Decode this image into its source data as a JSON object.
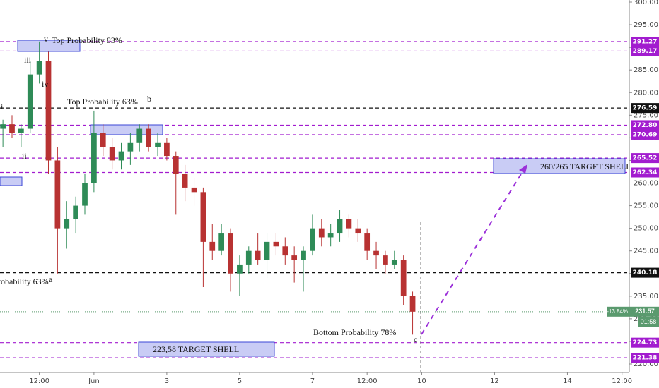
{
  "chart_data": {
    "type": "candlestick",
    "x": [
      -1.5,
      -1.25,
      -1,
      -0.75,
      -0.5,
      -0.25,
      0,
      0.25,
      0.5,
      0.75,
      1,
      1.25,
      1.5,
      1.75,
      2,
      2.25,
      2.5,
      2.75,
      3,
      3.25,
      3.5,
      3.75,
      4,
      4.25,
      4.5,
      4.75,
      5,
      5.25,
      5.5,
      5.75,
      6,
      6.25,
      6.5,
      6.75,
      7,
      7.25,
      7.5,
      7.75,
      8,
      8.25,
      8.5,
      8.75,
      9,
      9.25,
      9.5,
      9.75
    ],
    "open": [
      272,
      273,
      271,
      272,
      284,
      287,
      265,
      250,
      252,
      255,
      260,
      271,
      268,
      265,
      267,
      269,
      272,
      268,
      269,
      266,
      262,
      259,
      258,
      247,
      245,
      249,
      240,
      242,
      245,
      243,
      247,
      246,
      244,
      243,
      245,
      250,
      248,
      249,
      252,
      250,
      249,
      245,
      244,
      242,
      243,
      235
    ],
    "high": [
      274,
      275,
      273,
      287,
      291.3,
      289,
      268,
      256,
      257,
      262,
      276,
      273,
      270,
      269,
      271,
      273,
      273,
      271,
      270,
      267,
      264,
      261,
      259,
      251,
      251,
      250,
      244,
      246,
      249,
      249,
      249,
      248,
      246,
      246,
      253,
      252,
      251,
      254,
      253,
      252,
      250,
      247,
      245,
      245,
      244,
      236
    ],
    "low": [
      268,
      270,
      268,
      271,
      282,
      262,
      240,
      245.5,
      249,
      253,
      258,
      266,
      263,
      263,
      264,
      267,
      267,
      266,
      265,
      253,
      256,
      255,
      237,
      243,
      244,
      236,
      235,
      240,
      242,
      239,
      244,
      242,
      238,
      236,
      244,
      246,
      246,
      247,
      248,
      247,
      243,
      241,
      240,
      241,
      233,
      226.5
    ],
    "close": [
      273,
      271,
      272,
      284,
      287,
      265,
      250,
      252,
      255,
      260,
      271,
      268,
      265,
      267,
      269,
      272,
      268,
      269,
      266,
      262,
      259,
      258,
      247,
      245,
      249,
      240,
      242,
      245,
      243,
      247,
      246,
      244,
      243,
      245,
      250,
      248,
      249,
      252,
      250,
      249,
      245,
      244,
      242,
      243,
      235,
      231.57
    ],
    "up_color": "#2e8b57",
    "down_color": "#b83232",
    "xlim": [
      -1.58,
      15.7
    ],
    "ylim": [
      218.13,
      300.47
    ],
    "xticks": [
      {
        "value": -0.5,
        "label": "12:00"
      },
      {
        "value": 1,
        "label": "Jun"
      },
      3,
      5,
      7,
      {
        "value": 8.5,
        "label": "12:00"
      },
      10,
      12,
      14,
      {
        "value": 15.5,
        "label": "12:00"
      }
    ],
    "yticks": [
      {
        "value": 220,
        "label": "220.00"
      },
      {
        "value": 225,
        "label": "225.00"
      },
      {
        "value": 230,
        "label": "230.00"
      },
      {
        "value": 235,
        "label": "235.00"
      },
      {
        "value": 240,
        "label": "240.00"
      },
      {
        "value": 245,
        "label": "245.00"
      },
      {
        "value": 250,
        "label": "250.00"
      },
      {
        "value": 255,
        "label": "255.00"
      },
      {
        "value": 260,
        "label": "260.00"
      },
      {
        "value": 265,
        "label": "265.00"
      },
      {
        "value": 270,
        "label": "270.00"
      },
      {
        "value": 275,
        "label": "275.00"
      },
      {
        "value": 280,
        "label": "280.00"
      },
      {
        "value": 285,
        "label": "285.00"
      },
      {
        "value": 290,
        "label": "290.00"
      },
      {
        "value": 295,
        "label": "295.00"
      },
      {
        "value": 300,
        "label": "300.00"
      }
    ],
    "price_levels": [
      {
        "value": 291.27,
        "label": "291.27",
        "color": "#a21ccf"
      },
      {
        "value": 289.17,
        "label": "289.17",
        "color": "#a21ccf"
      },
      {
        "value": 276.59,
        "label": "276.59",
        "color": "#111111"
      },
      {
        "value": 272.8,
        "label": "272.80",
        "color": "#a21ccf"
      },
      {
        "value": 270.69,
        "label": "270.69",
        "color": "#a21ccf"
      },
      {
        "value": 265.52,
        "label": "265.52",
        "color": "#a21ccf"
      },
      {
        "value": 262.34,
        "label": "262.34",
        "color": "#a21ccf"
      },
      {
        "value": 240.18,
        "label": "240.18",
        "color": "#111111"
      },
      {
        "value": 224.73,
        "label": "224.73",
        "color": "#a21ccf"
      },
      {
        "value": 221.38,
        "label": "221.38",
        "color": "#a21ccf"
      }
    ],
    "last_price": {
      "value": 231.57,
      "label": "231.57",
      "change": "-13.84%",
      "countdown": "01:58",
      "color": "#5a9a6e"
    },
    "annotations": [
      "v",
      "Top Probability 83%",
      "iii",
      "iv",
      "i",
      "ii",
      "Top Probability 63%",
      "b",
      "robability 63%",
      "a",
      "Bottom Probability 78%",
      "c",
      "260/265 TARGET SHELL",
      "223,58 TARGET SHELL"
    ]
  }
}
